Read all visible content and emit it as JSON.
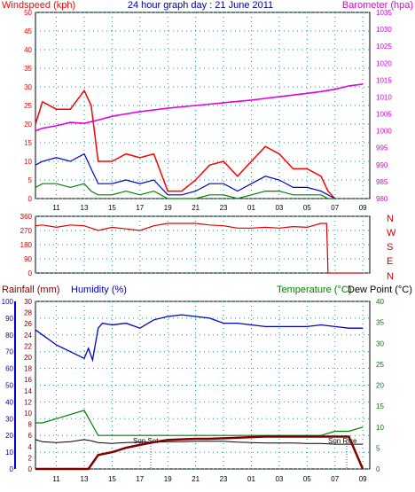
{
  "header": {
    "left_title": "Windspeed (kph)",
    "center_title": "24 hour graph day : 21 June 2011",
    "right_title": "Barometer (hpa)"
  },
  "colors": {
    "wind_red": "#ff0000",
    "wind_blue": "#0000cc",
    "wind_green": "#008000",
    "barometer": "#e000e0",
    "direction": "#e00000",
    "humidity": "#0000cc",
    "temperature": "#008000",
    "dewpoint": "#000000",
    "rainfall": "#800000",
    "grid": "#00a0a0"
  },
  "x_ticks": [
    "11",
    "13",
    "15",
    "17",
    "19",
    "21",
    "23",
    "01",
    "03",
    "05",
    "07",
    "09"
  ],
  "chart_data": [
    {
      "type": "line",
      "title": "24 hour graph day : 21 June 2011",
      "ylabel": "Windspeed (kph)",
      "ylabel_right": "Barometer (hpa)",
      "y_ticks": [
        0,
        5,
        10,
        15,
        20,
        25,
        30,
        35,
        40,
        45,
        50
      ],
      "y_right_ticks": [
        980,
        985,
        990,
        995,
        1000,
        1005,
        1010,
        1015,
        1020,
        1025,
        1030,
        1035
      ],
      "ylim": [
        0,
        50
      ],
      "ylim_right": [
        980,
        1035
      ],
      "x_ticks": [
        "11",
        "13",
        "15",
        "17",
        "19",
        "21",
        "23",
        "01",
        "03",
        "05",
        "07",
        "09"
      ],
      "series": [
        {
          "key": "wind_gust",
          "hours": [
            9.5,
            10,
            11,
            12,
            13,
            13.5,
            14,
            15,
            16,
            17,
            18,
            19,
            20,
            21,
            22,
            23,
            24,
            25,
            26,
            27,
            28,
            29,
            30,
            30.5,
            31
          ],
          "values": [
            20,
            26,
            24,
            24,
            29,
            25,
            10,
            10,
            12,
            11,
            12,
            2,
            2,
            5,
            9,
            10,
            6,
            10,
            14,
            12,
            8,
            8,
            6,
            2,
            0
          ]
        },
        {
          "key": "wind_avg",
          "hours": [
            9.5,
            10,
            11,
            12,
            13,
            13.5,
            14,
            15,
            16,
            17,
            18,
            19,
            20,
            21,
            22,
            23,
            24,
            25,
            26,
            27,
            28,
            29,
            30,
            30.5,
            31
          ],
          "values": [
            9,
            10,
            11,
            10,
            12,
            8,
            4,
            4,
            5,
            4,
            5,
            1,
            1,
            2,
            4,
            4,
            2,
            4,
            6,
            5,
            3,
            3,
            2,
            1,
            0
          ]
        },
        {
          "key": "wind_low",
          "hours": [
            9.5,
            10,
            11,
            12,
            13,
            13.5,
            14,
            15,
            16,
            17,
            18,
            19,
            20,
            21,
            22,
            23,
            24,
            25,
            26,
            27,
            28,
            29,
            30,
            30.5,
            31
          ],
          "values": [
            3,
            4,
            4,
            3,
            4,
            2,
            1,
            1,
            2,
            1,
            2,
            0,
            0,
            0,
            1,
            1,
            0,
            1,
            2,
            2,
            1,
            1,
            1,
            0,
            0
          ]
        },
        {
          "key": "barometer",
          "axis": "right",
          "hours": [
            9.5,
            10,
            11,
            12,
            13,
            14,
            15,
            16,
            17,
            18,
            19,
            20,
            21,
            22,
            23,
            24,
            25,
            26,
            27,
            28,
            29,
            30,
            31,
            32,
            33
          ],
          "values": [
            1000,
            1000.8,
            1001.5,
            1002.5,
            1002.2,
            1003.2,
            1004.3,
            1005,
            1005.7,
            1006.2,
            1006.7,
            1007.1,
            1007.5,
            1007.9,
            1008.3,
            1008.7,
            1009.1,
            1009.6,
            1010.1,
            1010.6,
            1011.1,
            1011.6,
            1012.3,
            1013.3,
            1013.8
          ]
        }
      ]
    },
    {
      "type": "line",
      "ylabel_right_letters": [
        "N",
        "W",
        "S",
        "E",
        "N"
      ],
      "y_ticks": [
        0,
        90,
        180,
        270,
        360
      ],
      "ylim": [
        0,
        360
      ],
      "series": [
        {
          "key": "wind_direction",
          "hours": [
            9.5,
            10,
            11,
            12,
            13,
            14,
            15,
            16,
            17,
            18,
            19,
            20,
            21,
            22,
            23,
            24,
            25,
            26,
            27,
            28,
            29,
            30,
            30.4,
            30.5,
            33
          ],
          "values": [
            300,
            305,
            290,
            305,
            300,
            270,
            290,
            280,
            270,
            300,
            315,
            315,
            315,
            305,
            300,
            285,
            285,
            290,
            285,
            295,
            290,
            315,
            315,
            0,
            0
          ]
        }
      ]
    },
    {
      "type": "line",
      "left_labels": [
        "Rainfall (mm)",
        "Humidity (%)"
      ],
      "right_labels": [
        "Temperature (°C)",
        "Dew Point (°C)"
      ],
      "annotations": [
        "Sun Set",
        "Sun Rise"
      ],
      "y_ticks": [
        0,
        10,
        20,
        30,
        40,
        50,
        60,
        70,
        80,
        90,
        100
      ],
      "y_rain_ticks": [
        0,
        2,
        4,
        6,
        8,
        10,
        12,
        14,
        16,
        18,
        20,
        22,
        24,
        26,
        28,
        30
      ],
      "y_right_ticks": [
        0,
        5,
        10,
        15,
        20,
        25,
        30,
        35,
        40
      ],
      "ylim": [
        0,
        100
      ],
      "ylim_right": [
        0,
        40
      ],
      "series": [
        {
          "key": "humidity",
          "hours": [
            9.5,
            10,
            11,
            12,
            13,
            13.3,
            13.6,
            14,
            14.3,
            15,
            16,
            17,
            18,
            19,
            20,
            21,
            22,
            23,
            24,
            25,
            26,
            27,
            28,
            29,
            30,
            31,
            32,
            33
          ],
          "values": [
            83,
            80,
            74,
            70,
            66,
            72,
            65,
            84,
            87,
            86,
            87,
            84,
            89,
            91,
            92,
            91,
            90,
            87,
            87,
            86,
            85,
            85,
            85,
            85,
            86,
            85,
            84,
            84
          ]
        },
        {
          "key": "temperature",
          "axis": "right",
          "hours": [
            9.5,
            10,
            11,
            12,
            13,
            13.5,
            14,
            15,
            16,
            17,
            18,
            19,
            20,
            21,
            22,
            23,
            24,
            25,
            26,
            27,
            28,
            29,
            30,
            31,
            32,
            33
          ],
          "values": [
            11,
            11,
            12,
            13,
            14,
            11,
            8,
            8,
            8,
            8,
            8,
            8,
            8,
            8,
            8,
            8,
            8,
            8,
            8,
            8,
            8,
            8,
            8,
            9,
            9,
            10
          ]
        },
        {
          "key": "dewpoint",
          "axis": "right",
          "hours": [
            9.5,
            10,
            11,
            12,
            13,
            13.5,
            14,
            15,
            16,
            17,
            18,
            19,
            20,
            21,
            22,
            23,
            24,
            25,
            26,
            27,
            28,
            29,
            30,
            31,
            32,
            33
          ],
          "values": [
            7,
            6.5,
            6.3,
            6.5,
            7,
            6.7,
            6.3,
            6.1,
            6.3,
            6.4,
            6.4,
            6.5,
            6.5,
            6.6,
            6.6,
            6.6,
            6.4,
            6.3,
            6.2,
            6.2,
            6.2,
            6.1,
            6.1,
            5.9,
            5.9,
            5.9
          ]
        },
        {
          "key": "rainfall",
          "axis": "rain",
          "hours": [
            9.5,
            13.3,
            14,
            15,
            16,
            17,
            18,
            19,
            20,
            21,
            22,
            23,
            24,
            25,
            26,
            27,
            28,
            29,
            30,
            31,
            32,
            33
          ],
          "values": [
            0,
            0,
            2.5,
            3,
            3.8,
            4.3,
            4.8,
            5.2,
            5.3,
            5.4,
            5.4,
            5.5,
            5.6,
            5.7,
            5.8,
            5.8,
            5.8,
            5.8,
            5.8,
            5.8,
            5.8,
            0
          ]
        }
      ]
    }
  ],
  "panel2": {
    "direction_letters": [
      "N",
      "W",
      "S",
      "E",
      "N"
    ]
  },
  "panel3": {
    "rainfall_label": "Rainfall (mm)",
    "humidity_label": "Humidity (%)",
    "temperature_label": "Temperature (°C)",
    "dewpoint_label": "Dew Point (°C)",
    "sunset_label": "Sun Set",
    "sunrise_label": "Sun Rise"
  }
}
